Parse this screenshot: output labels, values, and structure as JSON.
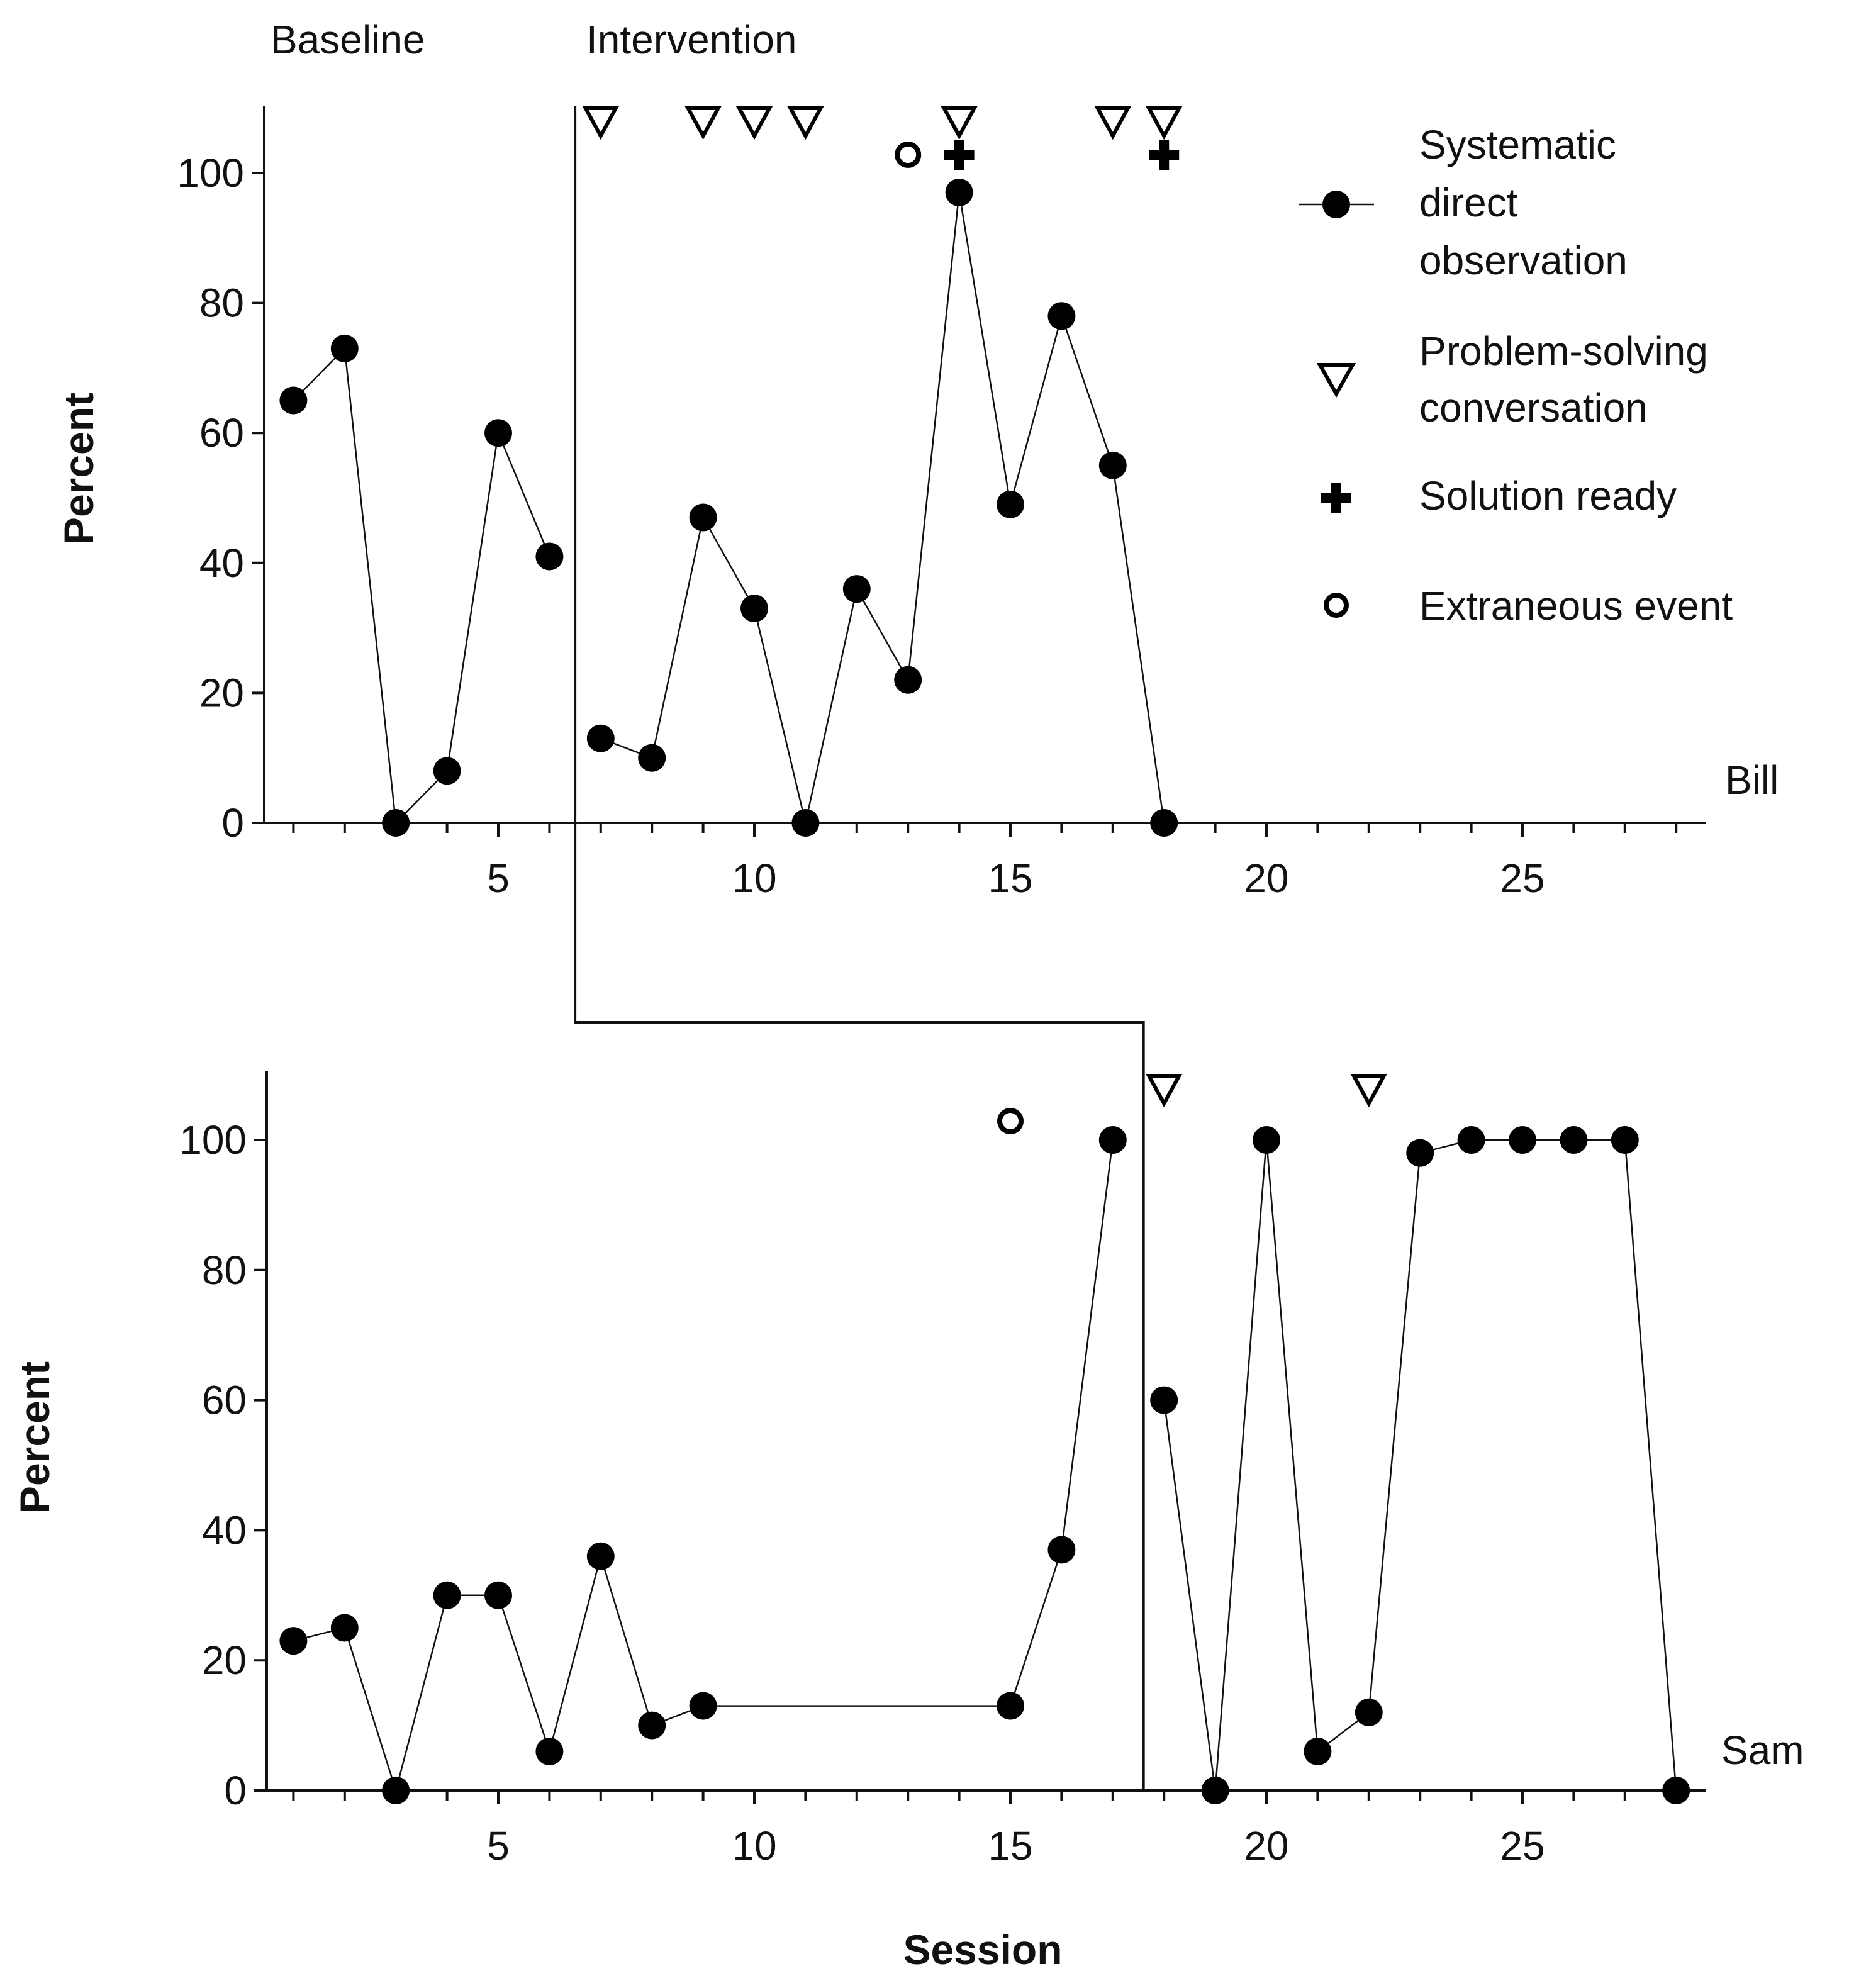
{
  "chart_data": {
    "type": "line",
    "phase_labels": [
      "Baseline",
      "Intervention"
    ],
    "xlabel": "Session",
    "x_ticks": [
      5,
      10,
      15,
      20,
      25
    ],
    "xlim": [
      0.5,
      28.7
    ],
    "legend": {
      "placement": "top-right",
      "entries": [
        {
          "label": "Systematic direct observation",
          "lines": [
            "Systematic",
            "direct",
            "observation"
          ],
          "marker": "filled-circle-line"
        },
        {
          "label": "Problem-solving conversation",
          "lines": [
            "Problem-solving",
            "conversation"
          ],
          "marker": "open-triangle-down"
        },
        {
          "label": "Solution ready",
          "lines": [
            "Solution ready"
          ],
          "marker": "plus"
        },
        {
          "label": "Extraneous event",
          "lines": [
            "Extraneous event"
          ],
          "marker": "open-circle"
        }
      ]
    },
    "panels": [
      {
        "name": "Bill",
        "ylabel": "Percent",
        "ylim": [
          0,
          110
        ],
        "y_ticks": [
          0,
          20,
          40,
          60,
          80,
          100
        ],
        "phase_change_after_session": 6.5,
        "series": [
          {
            "name": "Systematic direct observation",
            "segments": [
              {
                "x": [
                  1,
                  2,
                  3,
                  4,
                  5,
                  6
                ],
                "y": [
                  65,
                  73,
                  0,
                  8,
                  60,
                  41
                ]
              },
              {
                "x": [
                  7,
                  8,
                  9,
                  10,
                  11,
                  12,
                  13,
                  14,
                  15,
                  16,
                  17,
                  18
                ],
                "y": [
                  13,
                  10,
                  47,
                  33,
                  0,
                  36,
                  22,
                  97,
                  49,
                  78,
                  55,
                  0
                ]
              }
            ]
          }
        ],
        "problem_solving_conversation_sessions": [
          7,
          9,
          10,
          11,
          14,
          17,
          18
        ],
        "solution_ready_sessions": [
          14,
          18
        ],
        "extraneous_event_sessions": [
          13
        ]
      },
      {
        "name": "Sam",
        "ylabel": "Percent",
        "ylim": [
          0,
          110
        ],
        "y_ticks": [
          0,
          20,
          40,
          60,
          80,
          100
        ],
        "phase_change_after_session": 17.6,
        "series": [
          {
            "name": "Systematic direct observation",
            "segments": [
              {
                "x": [
                  1,
                  2,
                  3,
                  4,
                  5,
                  6,
                  7,
                  8,
                  9,
                  15,
                  16,
                  17
                ],
                "y": [
                  23,
                  25,
                  0,
                  30,
                  30,
                  6,
                  36,
                  10,
                  13,
                  13,
                  37,
                  100
                ]
              },
              {
                "x": [
                  18,
                  19,
                  20,
                  21,
                  22,
                  23,
                  24,
                  25,
                  26,
                  27,
                  28
                ],
                "y": [
                  60,
                  0,
                  100,
                  6,
                  12,
                  98,
                  100,
                  100,
                  100,
                  100,
                  0
                ]
              }
            ]
          }
        ],
        "problem_solving_conversation_sessions": [
          18,
          22
        ],
        "solution_ready_sessions": [],
        "extraneous_event_sessions": [
          15
        ]
      }
    ]
  }
}
